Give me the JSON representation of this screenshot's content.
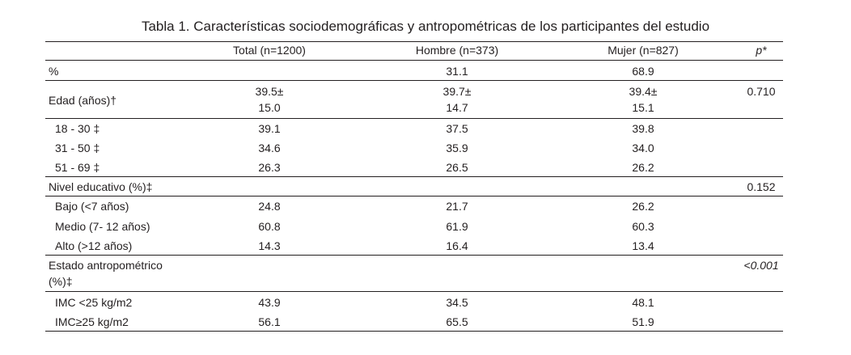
{
  "table": {
    "title": "Tabla 1. Características sociodemográficas y antropométricas de los participantes del estudio",
    "headers": {
      "total": "Total (n=1200)",
      "hombre": "Hombre (n=373)",
      "mujer": "Mujer (n=827)",
      "p": "p*"
    },
    "rows": {
      "pct": {
        "label": "%",
        "total": "",
        "hombre": "31.1",
        "mujer": "68.9",
        "p": ""
      },
      "edad": {
        "label": "Edad (años)†",
        "total_1": "39.5±",
        "total_2": "15.0",
        "hombre_1": "39.7±",
        "hombre_2": "14.7",
        "mujer_1": "39.4±",
        "mujer_2": "15.1",
        "p": "0.710"
      },
      "edad_18_30": {
        "label": "18 - 30 ‡",
        "total": "39.1",
        "hombre": "37.5",
        "mujer": "39.8"
      },
      "edad_31_50": {
        "label": "31 - 50 ‡",
        "total": "34.6",
        "hombre": "35.9",
        "mujer": "34.0"
      },
      "edad_51_69": {
        "label": "51 - 69 ‡",
        "total": "26.3",
        "hombre": "26.5",
        "mujer": "26.2"
      },
      "nivel": {
        "label": "Nivel educativo (%)‡",
        "p": "0.152"
      },
      "bajo": {
        "label": "Bajo (<7 años)",
        "total": "24.8",
        "hombre": "21.7",
        "mujer": "26.2"
      },
      "medio": {
        "label": "Medio (7- 12 años)",
        "total": "60.8",
        "hombre": "61.9",
        "mujer": "60.3"
      },
      "alto": {
        "label": "Alto (>12 años)",
        "total": "14.3",
        "hombre": "16.4",
        "mujer": "13.4"
      },
      "estado": {
        "label_1": "Estado antropométrico",
        "label_2": "(%)‡",
        "p": "<0.001"
      },
      "imc_bajo": {
        "label": "IMC <25 kg/m2",
        "total": "43.9",
        "hombre": "34.5",
        "mujer": "48.1"
      },
      "imc_alto": {
        "label": "IMC≥25 kg/m2",
        "total": "56.1",
        "hombre": "65.5",
        "mujer": "51.9"
      }
    }
  }
}
